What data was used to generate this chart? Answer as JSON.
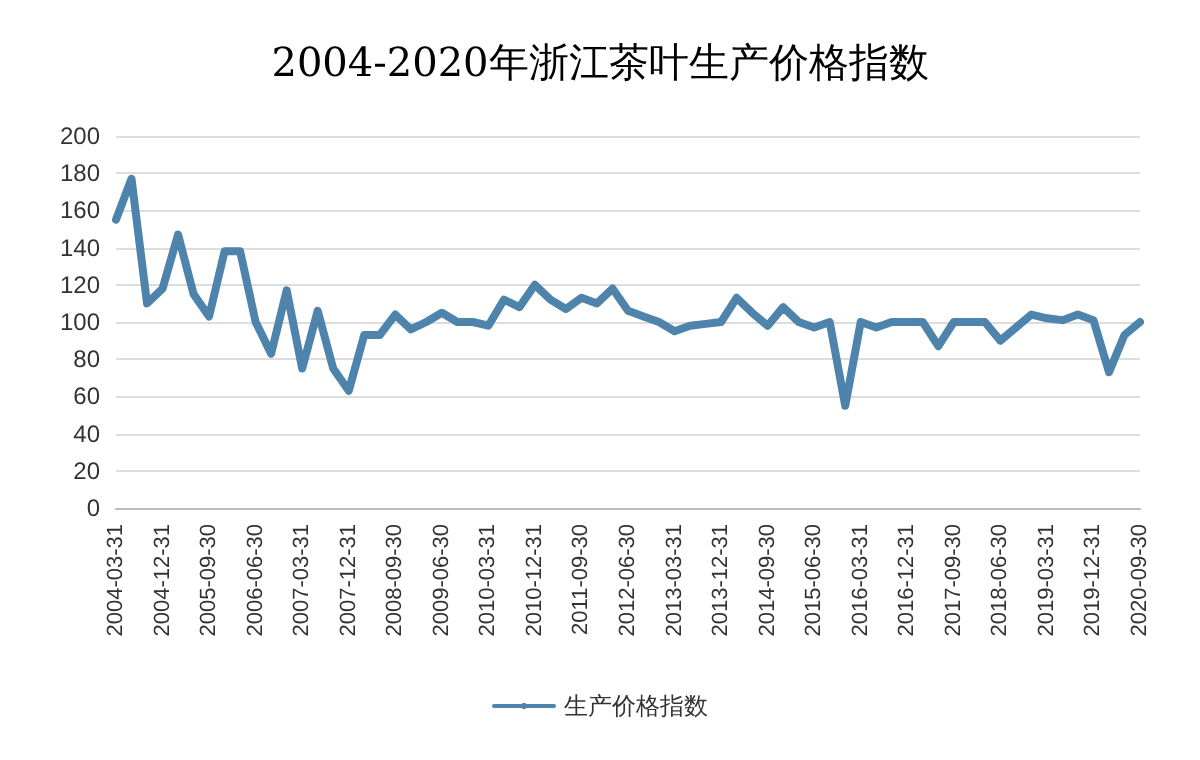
{
  "chart_data": {
    "type": "line",
    "title": "2004-2020年浙江茶叶生产价格指数",
    "categories": [
      "2004-03-31",
      null,
      null,
      "2004-12-31",
      null,
      null,
      "2005-09-30",
      null,
      null,
      "2006-06-30",
      null,
      null,
      "2007-03-31",
      null,
      null,
      "2007-12-31",
      null,
      null,
      "2008-09-30",
      null,
      null,
      "2009-06-30",
      null,
      null,
      "2010-03-31",
      null,
      null,
      "2010-12-31",
      null,
      null,
      "2011-09-30",
      null,
      null,
      "2012-06-30",
      null,
      null,
      "2013-03-31",
      null,
      null,
      "2013-12-31",
      null,
      null,
      "2014-09-30",
      null,
      null,
      "2015-06-30",
      null,
      null,
      "2016-03-31",
      null,
      null,
      "2016-12-31",
      null,
      null,
      "2017-09-30",
      null,
      null,
      "2018-06-30",
      null,
      null,
      "2019-03-31",
      null,
      null,
      "2019-12-31",
      null,
      null,
      "2020-09-30"
    ],
    "series": [
      {
        "name": "生产价格指数",
        "color": "#4e84ab",
        "values": [
          155,
          177,
          110,
          118,
          147,
          115,
          103,
          138,
          138,
          100,
          83,
          117,
          75,
          106,
          75,
          63,
          93,
          93,
          104,
          96,
          100,
          105,
          100,
          100,
          98,
          112,
          108,
          120,
          112,
          107,
          113,
          110,
          118,
          106,
          103,
          100,
          95,
          98,
          99,
          100,
          113,
          105,
          98,
          108,
          100,
          97,
          100,
          55,
          100,
          97,
          100,
          100,
          100,
          87,
          100,
          100,
          100,
          90,
          97,
          104,
          102,
          101,
          104,
          101,
          73,
          93,
          100
        ]
      }
    ],
    "ylim": [
      0,
      200
    ],
    "yticks": [
      0,
      20,
      40,
      60,
      80,
      100,
      120,
      140,
      160,
      180,
      200
    ],
    "grid": "y",
    "legend": "bottom",
    "marker": "none",
    "line_style": "solid"
  }
}
